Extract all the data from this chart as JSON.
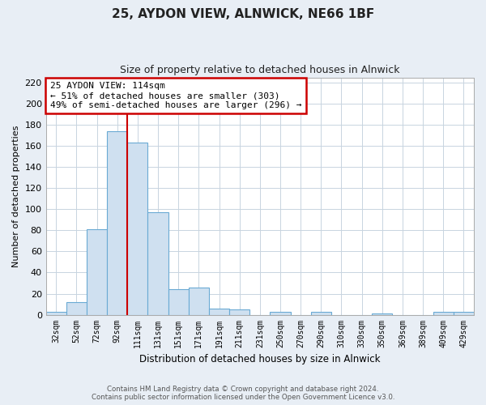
{
  "title": "25, AYDON VIEW, ALNWICK, NE66 1BF",
  "subtitle": "Size of property relative to detached houses in Alnwick",
  "xlabel": "Distribution of detached houses by size in Alnwick",
  "ylabel": "Number of detached properties",
  "bar_labels": [
    "32sqm",
    "52sqm",
    "72sqm",
    "92sqm",
    "111sqm",
    "131sqm",
    "151sqm",
    "171sqm",
    "191sqm",
    "211sqm",
    "231sqm",
    "250sqm",
    "270sqm",
    "290sqm",
    "310sqm",
    "330sqm",
    "350sqm",
    "369sqm",
    "389sqm",
    "409sqm",
    "429sqm"
  ],
  "bar_values": [
    3,
    12,
    81,
    174,
    163,
    97,
    24,
    26,
    6,
    5,
    0,
    3,
    0,
    3,
    0,
    0,
    1,
    0,
    0,
    3,
    3
  ],
  "bar_color": "#cfe0f0",
  "bar_edge_color": "#6aaad4",
  "vline_color": "#cc0000",
  "annotation_title": "25 AYDON VIEW: 114sqm",
  "annotation_line1": "← 51% of detached houses are smaller (303)",
  "annotation_line2": "49% of semi-detached houses are larger (296) →",
  "annotation_box_color": "#ffffff",
  "annotation_box_edge": "#cc0000",
  "ylim": [
    0,
    225
  ],
  "yticks": [
    0,
    20,
    40,
    60,
    80,
    100,
    120,
    140,
    160,
    180,
    200,
    220
  ],
  "footer1": "Contains HM Land Registry data © Crown copyright and database right 2024.",
  "footer2": "Contains public sector information licensed under the Open Government Licence v3.0.",
  "fig_bg_color": "#e8eef5",
  "plot_bg_color": "#ffffff",
  "grid_color": "#c8d4e0"
}
